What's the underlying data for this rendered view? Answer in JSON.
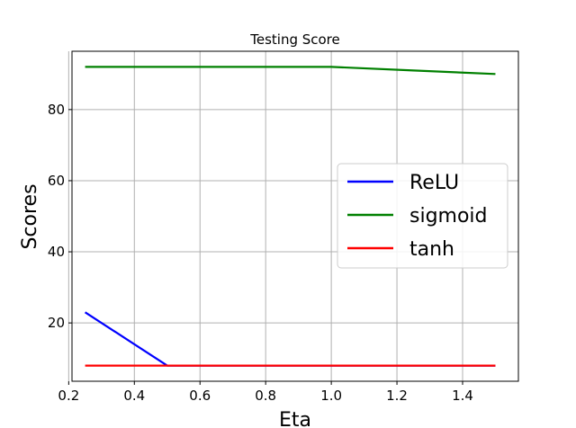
{
  "chart_data": {
    "type": "line",
    "title": "Testing Score",
    "xlabel": "Eta",
    "ylabel": "Scores",
    "x": [
      0.25,
      0.5,
      0.75,
      1.0,
      1.25,
      1.5
    ],
    "xlim": [
      0.21,
      1.57
    ],
    "ylim": [
      3.6,
      96.4
    ],
    "xticks": [
      0.2,
      0.4,
      0.6,
      0.8,
      1.0,
      1.2,
      1.4
    ],
    "xtick_labels": [
      "0.2",
      "0.4",
      "0.6",
      "0.8",
      "1.0",
      "1.2",
      "1.4"
    ],
    "yticks": [
      20,
      40,
      60,
      80
    ],
    "ytick_labels": [
      "20",
      "40",
      "60",
      "80"
    ],
    "grid": true,
    "legend_position": "center-right",
    "series": [
      {
        "name": "ReLU",
        "color": "#0000ff",
        "values": [
          23,
          8,
          8,
          8,
          8,
          8
        ]
      },
      {
        "name": "sigmoid",
        "color": "#008000",
        "values": [
          92,
          92,
          92,
          92,
          91,
          90
        ]
      },
      {
        "name": "tanh",
        "color": "#ff0000",
        "values": [
          8,
          8,
          8,
          8,
          8,
          8
        ]
      }
    ]
  }
}
